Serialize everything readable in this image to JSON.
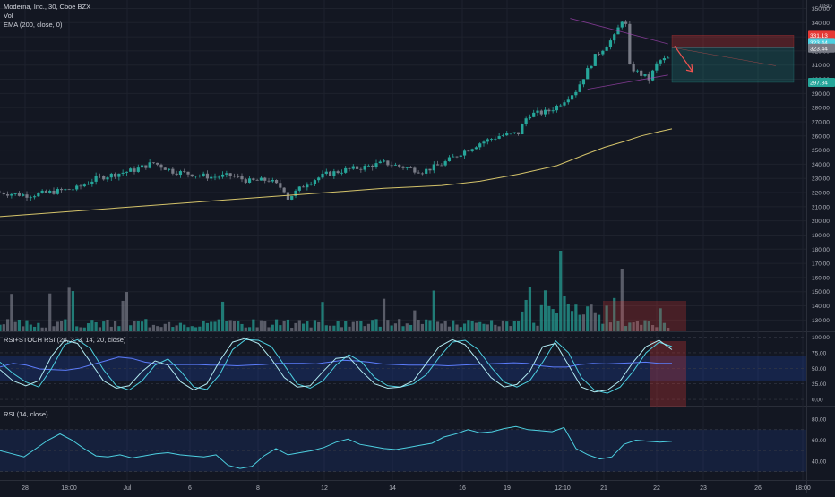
{
  "header": {
    "symbol_line": "Moderna, Inc., 30, Cboe BZX",
    "vol_label": "Vol",
    "ema_label": "EMA (200, close, 0)",
    "currency": "USD"
  },
  "price_labels": [
    {
      "text": "331.13",
      "color": "#e53935"
    },
    {
      "text": "323.44",
      "color": "#4dd0e1"
    },
    {
      "text": "323.44",
      "color": "#787b86"
    },
    {
      "text": "297.84",
      "color": "#26a69a"
    }
  ],
  "panes": {
    "rsi_stoch": "RSI+STOCH RSI (20, 3, 3, 14, 20, close)",
    "rsi": "RSI (14, close)"
  },
  "colors": {
    "up": "#26a69a",
    "down": "#787b86",
    "ema": "#d4c36a",
    "short_stop": "#e53935",
    "short_target": "#26a69a",
    "volume_up": "#26a69a",
    "volume_down": "#787b86"
  },
  "chart_data": [
    {
      "type": "candlestick",
      "title": "Moderna, Inc., 30, Cboe BZX",
      "x_ticks": [
        "28",
        "18:00",
        "Jul",
        "6",
        "8",
        "12",
        "14",
        "16",
        "19",
        "12:10",
        "21",
        "22",
        "23",
        "26",
        "18:00"
      ],
      "y_ticks": [
        350,
        340,
        330,
        320,
        310,
        300,
        290,
        280,
        270,
        260,
        250,
        240,
        230,
        220,
        210,
        200,
        190,
        180,
        170,
        160,
        150,
        140,
        130
      ],
      "ylim": [
        122,
        356
      ],
      "ylabel": "USD",
      "grid": true,
      "ema_200_line": [
        [
          0,
          203
        ],
        [
          20,
          205
        ],
        [
          40,
          207
        ],
        [
          60,
          209
        ],
        [
          80,
          211
        ],
        [
          100,
          213
        ],
        [
          120,
          215
        ],
        [
          140,
          217
        ],
        [
          160,
          219
        ],
        [
          180,
          221
        ],
        [
          190,
          222
        ],
        [
          200,
          223
        ],
        [
          215,
          224
        ],
        [
          230,
          225
        ],
        [
          250,
          228
        ],
        [
          270,
          233
        ],
        [
          290,
          239
        ],
        [
          305,
          247
        ],
        [
          315,
          252
        ],
        [
          325,
          256
        ],
        [
          334,
          260
        ],
        [
          343,
          263
        ],
        [
          350,
          265
        ]
      ],
      "short_position": {
        "entry": 322.5,
        "stop": 331.13,
        "target": 297.84
      },
      "trend_lines": [
        {
          "from": [
            297,
            343
          ],
          "to": [
            348,
            325
          ]
        },
        {
          "from": [
            306,
            293
          ],
          "to": [
            348,
            303
          ]
        }
      ]
    },
    {
      "type": "line",
      "title": "RSI+STOCH RSI (20, 3, 3, 14, 20, close)",
      "y_ticks": [
        100,
        75,
        50,
        25,
        0
      ],
      "ylim": [
        -10,
        108
      ],
      "bands": [
        30,
        70
      ],
      "series": [
        {
          "values": [
            52,
            58,
            55,
            49,
            48,
            47,
            50,
            56,
            62,
            68,
            66,
            60,
            57,
            56,
            56,
            56,
            55,
            55,
            54,
            55,
            56,
            58,
            58,
            58,
            57,
            60,
            63,
            62,
            60,
            57,
            56,
            55,
            55,
            55,
            54,
            55,
            56,
            57,
            58,
            59,
            58,
            54,
            52,
            52,
            56,
            58,
            57,
            58,
            59,
            60,
            58,
            58
          ]
        },
        {
          "values": [
            60,
            42,
            28,
            20,
            50,
            88,
            96,
            82,
            48,
            22,
            15,
            30,
            55,
            65,
            45,
            20,
            16,
            40,
            80,
            96,
            95,
            85,
            55,
            25,
            18,
            30,
            55,
            72,
            60,
            35,
            22,
            20,
            25,
            40,
            68,
            92,
            95,
            80,
            52,
            28,
            20,
            30,
            60,
            94,
            75,
            35,
            15,
            10,
            20,
            45,
            75,
            92,
            85
          ]
        },
        {
          "values": [
            48,
            30,
            22,
            30,
            70,
            95,
            90,
            60,
            30,
            18,
            22,
            45,
            62,
            55,
            28,
            15,
            25,
            62,
            92,
            98,
            90,
            65,
            35,
            20,
            22,
            45,
            66,
            68,
            45,
            25,
            18,
            20,
            30,
            58,
            85,
            96,
            88,
            62,
            35,
            20,
            24,
            45,
            85,
            90,
            55,
            20,
            12,
            15,
            30,
            60,
            85,
            95,
            80
          ]
        }
      ]
    },
    {
      "type": "line",
      "title": "RSI (14, close)",
      "y_ticks": [
        80,
        60,
        40
      ],
      "ylim": [
        22,
        92
      ],
      "bands": [
        30,
        50,
        70
      ],
      "series": [
        {
          "values": [
            50,
            47,
            44,
            52,
            60,
            66,
            60,
            52,
            45,
            44,
            46,
            43,
            45,
            47,
            48,
            46,
            45,
            44,
            46,
            36,
            33,
            35,
            45,
            52,
            46,
            48,
            50,
            53,
            58,
            61,
            56,
            54,
            52,
            51,
            53,
            55,
            57,
            63,
            66,
            70,
            67,
            68,
            71,
            73,
            70,
            69,
            68,
            72,
            52,
            46,
            42,
            44,
            56,
            60,
            59,
            58,
            59
          ]
        }
      ]
    }
  ]
}
